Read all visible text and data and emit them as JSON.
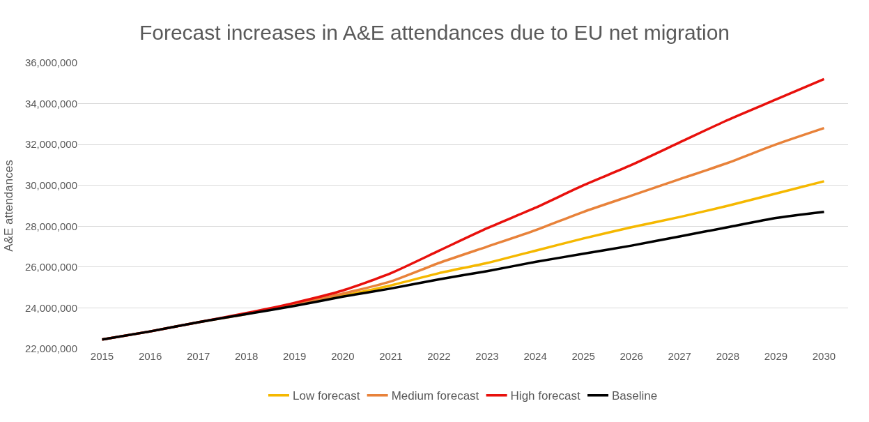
{
  "chart_data": {
    "type": "line",
    "title": "Forecast increases in A&E attendances due to EU net migration",
    "ylabel": "A&E attendances",
    "categories": [
      "2015",
      "2016",
      "2017",
      "2018",
      "2019",
      "2020",
      "2021",
      "2022",
      "2023",
      "2024",
      "2025",
      "2026",
      "2027",
      "2028",
      "2029",
      "2030"
    ],
    "series": [
      {
        "name": "Low forecast",
        "color": "#f5b800",
        "values": [
          null,
          null,
          null,
          null,
          24150000,
          24600000,
          25100000,
          25700000,
          26200000,
          26800000,
          27400000,
          27950000,
          28450000,
          29000000,
          29600000,
          30200000
        ]
      },
      {
        "name": "Medium forecast",
        "color": "#e8823a",
        "values": [
          22450000,
          22850000,
          23300000,
          23700000,
          24200000,
          24700000,
          25300000,
          26200000,
          27000000,
          27800000,
          28700000,
          29500000,
          30300000,
          31100000,
          32000000,
          32800000
        ]
      },
      {
        "name": "High forecast",
        "color": "#e8100c",
        "values": [
          22450000,
          22850000,
          23300000,
          23750000,
          24250000,
          24850000,
          25700000,
          26800000,
          27900000,
          28900000,
          30000000,
          31000000,
          32100000,
          33200000,
          34200000,
          35200000
        ]
      },
      {
        "name": "Baseline",
        "color": "#000000",
        "values": [
          22450000,
          22850000,
          23300000,
          23700000,
          24100000,
          24550000,
          24950000,
          25400000,
          25800000,
          26250000,
          26650000,
          27050000,
          27500000,
          27950000,
          28400000,
          28700000
        ]
      }
    ],
    "ylim": [
      22000000,
      36000000
    ],
    "yticks": [
      {
        "value": 22000000,
        "label": "22,000,000"
      },
      {
        "value": 24000000,
        "label": "24,000,000"
      },
      {
        "value": 26000000,
        "label": "26,000,000"
      },
      {
        "value": 28000000,
        "label": "28,000,000"
      },
      {
        "value": 30000000,
        "label": "30,000,000"
      },
      {
        "value": 32000000,
        "label": "32,000,000"
      },
      {
        "value": 34000000,
        "label": "34,000,000"
      },
      {
        "value": 36000000,
        "label": "36,000,000"
      }
    ],
    "grid": "y",
    "legend": "bottom",
    "marker": "none",
    "line_style": "solid"
  }
}
